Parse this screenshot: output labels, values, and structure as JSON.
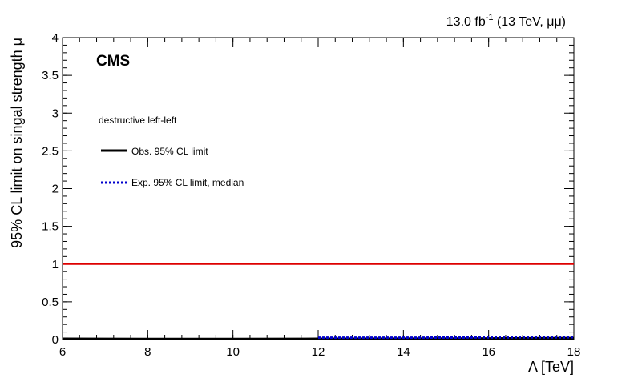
{
  "header": {
    "lumi_value": "13.0 fb",
    "lumi_exponent": "-1",
    "lumi_condition": "(13 TeV,  μμ)"
  },
  "chart_data": {
    "type": "line",
    "experiment_label": "CMS",
    "scenario_label": "destructive left-left",
    "xlabel": "Λ [TeV]",
    "ylabel": "95% CL limit on singal strength μ",
    "xlim": [
      6,
      18
    ],
    "ylim": [
      0,
      4
    ],
    "x_ticks": [
      6,
      8,
      10,
      12,
      14,
      16,
      18
    ],
    "x_tick_labels": [
      "6",
      "8",
      "10",
      "12",
      "14",
      "16",
      "18"
    ],
    "y_ticks": [
      0,
      0.5,
      1,
      1.5,
      2,
      2.5,
      3,
      3.5,
      4
    ],
    "y_tick_labels": [
      "0",
      "0.5",
      "1",
      "1.5",
      "2",
      "2.5",
      "3",
      "3.5",
      "4"
    ],
    "legend": [
      {
        "label": "Obs. 95% CL limit",
        "color": "#000000",
        "style": "solid"
      },
      {
        "label": "Exp. 95% CL limit, median",
        "color": "#0000cc",
        "style": "dotted"
      }
    ],
    "series": [
      {
        "name": "Obs. 95% CL limit",
        "color": "#000000",
        "x": [
          6,
          8,
          10,
          12,
          14,
          16,
          18
        ],
        "y": [
          0.01,
          0.008,
          0.008,
          0.01,
          0.012,
          0.015,
          0.02
        ]
      },
      {
        "name": "Exp. 95% CL limit, median",
        "color": "#0000cc",
        "x": [
          12,
          14,
          16,
          18
        ],
        "y": [
          0.025,
          0.025,
          0.028,
          0.03
        ]
      }
    ],
    "reference_line": {
      "y": 1,
      "color": "#dd0000"
    }
  }
}
